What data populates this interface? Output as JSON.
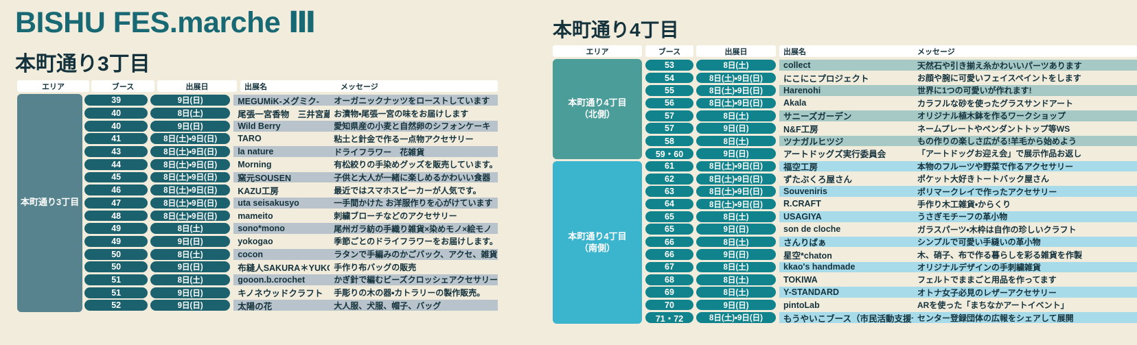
{
  "page": {
    "title": "BISHU FES.marche Ⅲ"
  },
  "colors": {
    "bg": "#f2ecdd",
    "title": "#186974",
    "heading_text": "#14323c",
    "row_text": "#14323c",
    "header_bg": "#ffffff"
  },
  "tables": [
    {
      "title": "本町通り3丁目",
      "pill_color": "#1b626e",
      "headers": {
        "area": "エリア",
        "booth": "ブース",
        "date": "出展日",
        "name": "出展名",
        "message": "メッセージ"
      },
      "groups": [
        {
          "label_lines": [
            "本町通り3丁目"
          ],
          "color": "#56838d",
          "stripe": "#b8c3cb",
          "row_count": 17
        }
      ],
      "rows": [
        {
          "booth": "39",
          "date": "9日(日)",
          "name": "MEGUMiK-メグミク-",
          "message": "オーガニックナッツをローストしています"
        },
        {
          "booth": "40",
          "date": "8日(土)",
          "name": "尾張一宮香物　三井宮蔵",
          "message": "お漬物・尾張一宮の味をお届けします"
        },
        {
          "booth": "40",
          "date": "9日(日)",
          "name": "Wild Berry",
          "message": "愛知県産の小麦と自然卵のシフォンケーキ"
        },
        {
          "booth": "41",
          "date": "8日(土)・9日(日)",
          "name": "TARO",
          "message": "粘土と針金で作る一点物アクセサリー"
        },
        {
          "booth": "43",
          "date": "8日(土)・9日(日)",
          "name": "la nature",
          "message": "ドライフラワー　花雑貨"
        },
        {
          "booth": "44",
          "date": "8日(土)・9日(日)",
          "name": "Morning",
          "message": "有松絞りの手染めグッズを販売しています。"
        },
        {
          "booth": "45",
          "date": "8日(土)・9日(日)",
          "name": "窯元SOUSEN",
          "message": "子供と大人が一緒に楽しめるかわいい食器"
        },
        {
          "booth": "46",
          "date": "8日(土)・9日(日)",
          "name": "KAZU工房",
          "message": "最近ではスマホスピーカーが人気です。"
        },
        {
          "booth": "47",
          "date": "8日(土)・9日(日)",
          "name": "uta seisakusyo",
          "message": "一手間かけた お洋服作りを心がけています"
        },
        {
          "booth": "48",
          "date": "8日(土)・9日(日)",
          "name": "mameito",
          "message": "刺繍ブローチなどのアクセサリー"
        },
        {
          "booth": "49",
          "date": "8日(土)",
          "name": "sono*mono",
          "message": "尾州ガラ紡の手織り雑貨×染めモノ×絵モノ"
        },
        {
          "booth": "49",
          "date": "9日(日)",
          "name": "yokogao",
          "message": "季節ごとのドライフラワーをお届けします。"
        },
        {
          "booth": "50",
          "date": "8日(土)",
          "name": "cocon",
          "message": "ラタンで手編みのかごバック、アクセ、雑貨"
        },
        {
          "booth": "50",
          "date": "9日(日)",
          "name": "布縫人SAKURA＊YUKO",
          "message": "手作り布バッグの販売"
        },
        {
          "booth": "51",
          "date": "8日(土)",
          "name": "gooon.b.crochet",
          "message": "かぎ針で編むビーズクロッシェアクセサリー"
        },
        {
          "booth": "51",
          "date": "9日(日)",
          "name": "キノネウッドクラフト",
          "message": "手彫りの木の器・カトラリーの製作販売。"
        },
        {
          "booth": "52",
          "date": "9日(日)",
          "name": "太陽の花",
          "message": "大人服、犬服、帽子、バッグ"
        }
      ]
    },
    {
      "title": "本町通り4丁目",
      "pill_color": "#11838d",
      "headers": {
        "area": "エリア",
        "booth": "ブース",
        "date": "出展日",
        "name": "出展名",
        "message": "メッセージ"
      },
      "groups": [
        {
          "label_lines": [
            "本町通り4丁目",
            "（北側）"
          ],
          "color": "#4a9d99",
          "stripe": "#a6c9c6",
          "row_count": 8
        },
        {
          "label_lines": [
            "本町通り4丁目",
            "（南側）"
          ],
          "color": "#3bb4ce",
          "stripe": "#a8dbe9",
          "row_count": 13
        }
      ],
      "rows": [
        {
          "booth": "53",
          "date": "8日(土)",
          "name": "collect",
          "message": "天然石や引き揃え糸かわいいパーツあります"
        },
        {
          "booth": "54",
          "date": "8日(土)・9日(日)",
          "name": "にこにこプロジェクト",
          "message": "お顔や腕に可愛いフェイスペイントをします"
        },
        {
          "booth": "55",
          "date": "8日(土)・9日(日)",
          "name": "Harenohi",
          "message": "世界に1つの可愛いが作れます!"
        },
        {
          "booth": "56",
          "date": "8日(土)・9日(日)",
          "name": "Akala",
          "message": "カラフルな砂を使ったグラスサンドアート"
        },
        {
          "booth": "57",
          "date": "8日(土)",
          "name": "サニーズガーデン",
          "message": "オリジナル植木鉢を作るワークショップ"
        },
        {
          "booth": "57",
          "date": "9日(日)",
          "name": "N&F工房",
          "message": "ネームプレートやペンダントトップ等WS"
        },
        {
          "booth": "58",
          "date": "8日(土)",
          "name": "ツナガルヒツジ",
          "message": "もの作りの楽しさ広がる!羊毛から始めよう"
        },
        {
          "booth": "59・60",
          "date": "9日(日)",
          "name": "アートドッグズ実行委員会",
          "message": "「アートドッグお迎え会」で展示作品お返し"
        },
        {
          "booth": "61",
          "date": "8日(土)・9日(日)",
          "name": "福空工房",
          "message": "本物のフルーツや野菜で作るアクセサリー"
        },
        {
          "booth": "62",
          "date": "8日(土)・9日(日)",
          "name": "ずたぶくろ屋さん",
          "message": "ポケット大好きトートバック屋さん"
        },
        {
          "booth": "63",
          "date": "8日(土)・9日(日)",
          "name": "Souveniris",
          "message": "ポリマークレイで作ったアクセサリー"
        },
        {
          "booth": "64",
          "date": "8日(土)・9日(日)",
          "name": "R.CRAFT",
          "message": "手作り木工雑貨・からくり"
        },
        {
          "booth": "65",
          "date": "8日(土)",
          "name": "USAGIYA",
          "message": "うさぎモチーフの革小物"
        },
        {
          "booth": "65",
          "date": "9日(日)",
          "name": "son de cloche",
          "message": "ガラスパーツ・木枠は自作の珍しいクラフト"
        },
        {
          "booth": "66",
          "date": "8日(土)",
          "name": "さんりばぁ",
          "message": "シンプルで可愛い手縫いの革小物"
        },
        {
          "booth": "66",
          "date": "9日(日)",
          "name": "星空*chaton",
          "message": "木、硝子、布で作る暮らしを彩る雑貨を作製"
        },
        {
          "booth": "67",
          "date": "8日(土)",
          "name": "kkao's handmade",
          "message": "オリジナルデザインの手刺繍雑貨"
        },
        {
          "booth": "68",
          "date": "8日(土)",
          "name": "TOKIWA",
          "message": "フェルトでままごと用品を作ってます"
        },
        {
          "booth": "69",
          "date": "8日(土)",
          "name": "Y-STANDARD",
          "message": "オトナ女子必見のレザーアクセサリー"
        },
        {
          "booth": "70",
          "date": "9日(日)",
          "name": "pintoLab",
          "message": "ARを使った「まちなかアートイベント」"
        },
        {
          "booth": "71・72",
          "date": "8日(土)・9日(日)",
          "name": "もうやいこブース（市民活動支援センター）",
          "message": "センター登録団体の広報をシェアして展開"
        }
      ]
    }
  ]
}
